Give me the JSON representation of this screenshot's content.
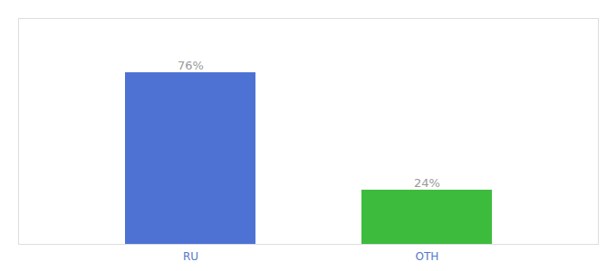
{
  "chart_data": {
    "type": "bar",
    "categories": [
      "RU",
      "OTH"
    ],
    "values": [
      76,
      24
    ],
    "value_labels": [
      "76%",
      "24%"
    ],
    "colors": [
      "#4d72d4",
      "#3dbb3d"
    ],
    "ylim": [
      0,
      100
    ],
    "data_labels": true,
    "tick_labels": "x"
  }
}
